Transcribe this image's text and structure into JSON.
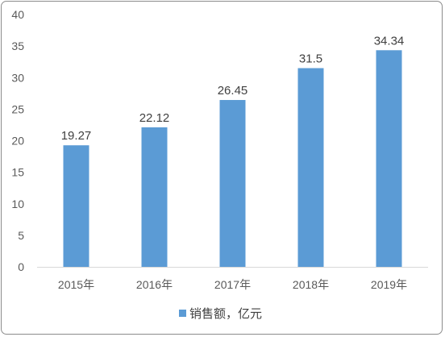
{
  "chart_data": {
    "type": "bar",
    "categories": [
      "2015年",
      "2016年",
      "2017年",
      "2018年",
      "2019年"
    ],
    "series": [
      {
        "name": "销售额，亿元",
        "values": [
          19.27,
          22.12,
          26.45,
          31.5,
          34.34
        ],
        "color": "#5b9bd5"
      }
    ],
    "data_labels": [
      "19.27",
      "22.12",
      "26.45",
      "31.5",
      "34.34"
    ],
    "ylim": [
      0,
      40
    ],
    "yticks": [
      0,
      5,
      10,
      15,
      20,
      25,
      30,
      35,
      40
    ],
    "xlabel": "",
    "ylabel": "",
    "grid": false,
    "legend_position": "bottom"
  }
}
